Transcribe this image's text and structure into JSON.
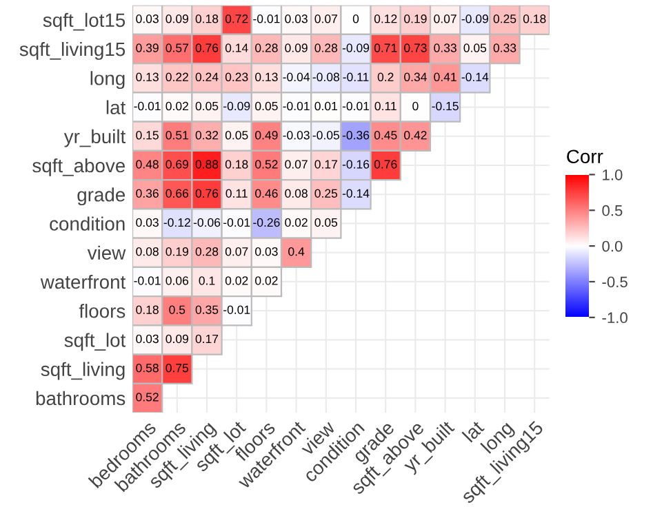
{
  "chart_data": {
    "type": "heatmap",
    "clabel": "Corr",
    "categories": [
      "bedrooms",
      "bathrooms",
      "sqft_living",
      "sqft_lot",
      "floors",
      "waterfront",
      "view",
      "condition",
      "grade",
      "sqft_above",
      "yr_built",
      "lat",
      "long",
      "sqft_living15"
    ],
    "y_categories": [
      "sqft_lot15",
      "sqft_living15",
      "long",
      "lat",
      "yr_built",
      "sqft_above",
      "grade",
      "condition",
      "view",
      "waterfront",
      "floors",
      "sqft_lot",
      "sqft_living",
      "bathrooms"
    ],
    "cells": [
      [
        0.03,
        0.09,
        0.18,
        0.72,
        -0.01,
        0.03,
        0.07,
        0,
        0.12,
        0.19,
        0.07,
        -0.09,
        0.25,
        0.18
      ],
      [
        0.39,
        0.57,
        0.76,
        0.14,
        0.28,
        0.09,
        0.28,
        -0.09,
        0.71,
        0.73,
        0.33,
        0.05,
        0.33,
        null
      ],
      [
        0.13,
        0.22,
        0.24,
        0.23,
        0.13,
        -0.04,
        -0.08,
        -0.11,
        0.2,
        0.34,
        0.41,
        -0.14,
        null,
        null
      ],
      [
        -0.01,
        0.02,
        0.05,
        -0.09,
        0.05,
        -0.01,
        0.01,
        -0.01,
        0.11,
        0,
        -0.15,
        null,
        null,
        null
      ],
      [
        0.15,
        0.51,
        0.32,
        0.05,
        0.49,
        -0.03,
        -0.05,
        -0.36,
        0.45,
        0.42,
        null,
        null,
        null,
        null
      ],
      [
        0.48,
        0.69,
        0.88,
        0.18,
        0.52,
        0.07,
        0.17,
        -0.16,
        0.76,
        null,
        null,
        null,
        null,
        null
      ],
      [
        0.36,
        0.66,
        0.76,
        0.11,
        0.46,
        0.08,
        0.25,
        -0.14,
        null,
        null,
        null,
        null,
        null,
        null
      ],
      [
        0.03,
        -0.12,
        -0.06,
        -0.01,
        -0.26,
        0.02,
        0.05,
        null,
        null,
        null,
        null,
        null,
        null,
        null
      ],
      [
        0.08,
        0.19,
        0.28,
        0.07,
        0.03,
        0.4,
        null,
        null,
        null,
        null,
        null,
        null,
        null,
        null
      ],
      [
        -0.01,
        0.06,
        0.1,
        0.02,
        0.02,
        null,
        null,
        null,
        null,
        null,
        null,
        null,
        null,
        null
      ],
      [
        0.18,
        0.5,
        0.35,
        -0.01,
        null,
        null,
        null,
        null,
        null,
        null,
        null,
        null,
        null,
        null
      ],
      [
        0.03,
        0.09,
        0.17,
        null,
        null,
        null,
        null,
        null,
        null,
        null,
        null,
        null,
        null,
        null
      ],
      [
        0.58,
        0.75,
        null,
        null,
        null,
        null,
        null,
        null,
        null,
        null,
        null,
        null,
        null,
        null
      ],
      [
        0.52,
        null,
        null,
        null,
        null,
        null,
        null,
        null,
        null,
        null,
        null,
        null,
        null,
        null
      ]
    ],
    "data_labels": true,
    "grid": true,
    "clim": [
      -1,
      1
    ],
    "cticks": [
      {
        "value": -1,
        "label": "-1.0"
      },
      {
        "value": -0.5,
        "label": "-0.5"
      },
      {
        "value": 0,
        "label": "0.0"
      },
      {
        "value": 0.5,
        "label": "0.5"
      },
      {
        "value": 1,
        "label": "1.0"
      }
    ]
  }
}
